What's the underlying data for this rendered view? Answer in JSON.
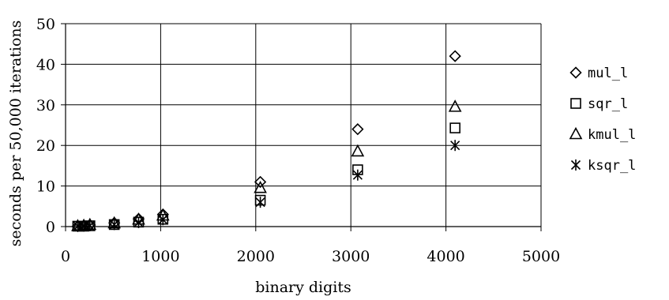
{
  "chart_data": {
    "type": "scatter",
    "xlabel": "binary digits",
    "ylabel": "seconds per 50,000 iterations",
    "xlim": [
      0,
      5000
    ],
    "ylim": [
      0,
      50
    ],
    "x_ticks": [
      "0",
      "1000",
      "2000",
      "3000",
      "4000",
      "5000"
    ],
    "y_ticks": [
      "0",
      "10",
      "20",
      "30",
      "40",
      "50"
    ],
    "grid": true,
    "legend_position": "right",
    "series": [
      {
        "name": "mul_l",
        "marker": "diamond",
        "x": [
          128,
          192,
          256,
          512,
          768,
          1024,
          2048,
          3072,
          4096
        ],
        "y": [
          0.1,
          0.2,
          0.4,
          0.9,
          1.9,
          3.0,
          11.0,
          24.0,
          42.0
        ]
      },
      {
        "name": "sqr_l",
        "marker": "square",
        "x": [
          128,
          192,
          256,
          512,
          768,
          1024,
          2048,
          3072,
          4096
        ],
        "y": [
          0.1,
          0.1,
          0.2,
          0.5,
          1.1,
          1.8,
          6.5,
          14.0,
          24.3
        ]
      },
      {
        "name": "kmul_l",
        "marker": "triangle",
        "x": [
          128,
          192,
          256,
          512,
          768,
          1024,
          2048,
          3072,
          4096
        ],
        "y": [
          0.1,
          0.2,
          0.4,
          0.8,
          1.7,
          2.7,
          9.5,
          18.5,
          29.5
        ]
      },
      {
        "name": "ksqr_l",
        "marker": "star",
        "x": [
          128,
          192,
          256,
          512,
          768,
          1024,
          2048,
          3072,
          4096
        ],
        "y": [
          0.1,
          0.1,
          0.2,
          0.5,
          1.0,
          1.7,
          6.0,
          12.7,
          20.0
        ]
      }
    ]
  }
}
